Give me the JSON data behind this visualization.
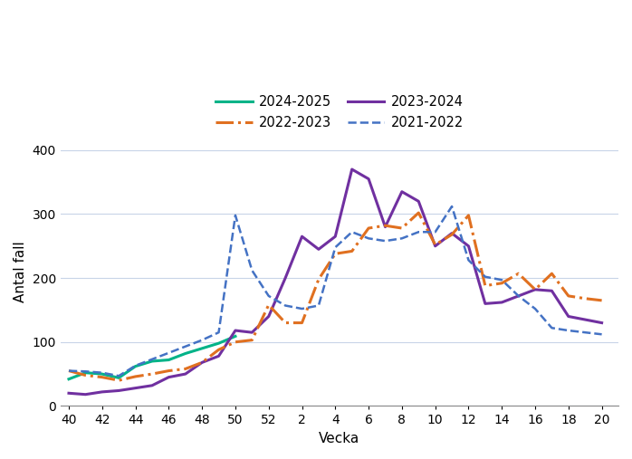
{
  "xlabel": "Vecka",
  "ylabel": "Antal fall",
  "ylim": [
    0,
    420
  ],
  "yticks": [
    0,
    100,
    200,
    300,
    400
  ],
  "background_color": "#ffffff",
  "grid_color": "#c8d4e8",
  "x_tick_labels": [
    "40",
    "42",
    "44",
    "46",
    "48",
    "50",
    "52",
    "2",
    "4",
    "6",
    "8",
    "10",
    "12",
    "14",
    "16",
    "18",
    "20"
  ],
  "x_tick_pos": [
    0,
    2,
    4,
    6,
    8,
    10,
    12,
    14,
    16,
    18,
    20,
    22,
    24,
    26,
    28,
    30,
    32
  ],
  "series": [
    {
      "label": "2024-2025",
      "color": "#00b388",
      "linestyle": "solid",
      "linewidth": 2.2,
      "x": [
        0,
        1,
        2,
        3,
        4,
        5,
        6,
        7,
        8,
        9,
        10
      ],
      "y": [
        42,
        52,
        50,
        44,
        62,
        70,
        72,
        82,
        90,
        98,
        109
      ]
    },
    {
      "label": "2023-2024",
      "color": "#7030a0",
      "linestyle": "solid",
      "linewidth": 2.2,
      "x": [
        0,
        1,
        2,
        3,
        4,
        5,
        6,
        7,
        8,
        9,
        10,
        11,
        12,
        13,
        14,
        15,
        16,
        17,
        18,
        19,
        20,
        21,
        22,
        23,
        24,
        25,
        26,
        27,
        28,
        29,
        30,
        31,
        32
      ],
      "y": [
        20,
        18,
        22,
        24,
        28,
        32,
        45,
        50,
        68,
        78,
        118,
        115,
        140,
        200,
        265,
        245,
        265,
        370,
        355,
        280,
        335,
        320,
        250,
        270,
        250,
        160,
        162,
        172,
        182,
        180,
        140,
        135,
        130
      ]
    },
    {
      "label": "2022-2023",
      "color": "#e07020",
      "linestyle": "dashdot",
      "linewidth": 2.2,
      "x": [
        0,
        1,
        2,
        3,
        4,
        5,
        6,
        7,
        8,
        9,
        10,
        11,
        12,
        13,
        14,
        15,
        16,
        17,
        18,
        19,
        20,
        21,
        22,
        23,
        24,
        25,
        26,
        27,
        28,
        29,
        30,
        31,
        32
      ],
      "y": [
        55,
        48,
        45,
        40,
        46,
        50,
        55,
        58,
        68,
        88,
        100,
        103,
        158,
        130,
        130,
        198,
        238,
        242,
        278,
        282,
        278,
        302,
        252,
        268,
        298,
        188,
        192,
        207,
        182,
        207,
        172,
        168,
        165
      ]
    },
    {
      "label": "2021-2022",
      "color": "#4472c4",
      "linestyle": "dashed",
      "linewidth": 1.8,
      "x": [
        0,
        1,
        2,
        3,
        4,
        5,
        6,
        7,
        8,
        9,
        10,
        11,
        12,
        13,
        14,
        15,
        16,
        17,
        18,
        19,
        20,
        21,
        22,
        23,
        24,
        25,
        26,
        27,
        28,
        29,
        30,
        31,
        32
      ],
      "y": [
        55,
        54,
        52,
        47,
        63,
        73,
        83,
        93,
        103,
        115,
        298,
        212,
        172,
        157,
        152,
        157,
        248,
        272,
        262,
        258,
        262,
        272,
        272,
        312,
        228,
        202,
        197,
        172,
        152,
        122,
        118,
        115,
        112
      ]
    }
  ],
  "legend_order": [
    0,
    2,
    1,
    3
  ],
  "legend_labels": [
    "2024-2025",
    "2022-2023",
    "2023-2024",
    "2021-2022"
  ],
  "legend_fontsize": 10.5
}
